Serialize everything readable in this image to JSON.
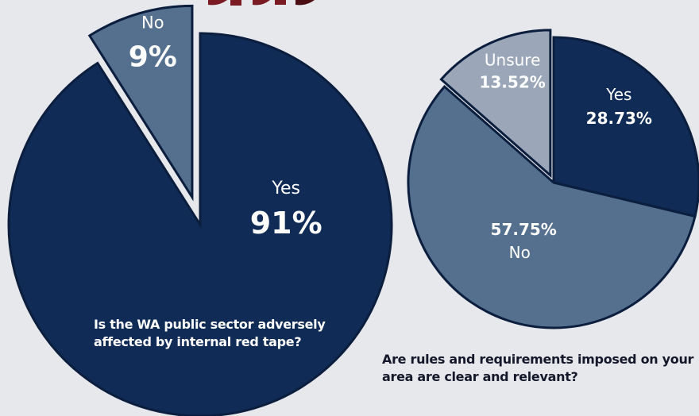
{
  "page": {
    "banner_colors": [
      "#7a1a22",
      "#4a0d12"
    ]
  },
  "colors": {
    "dark_navy": "#0f2b56",
    "mid_slate": "#55708f",
    "light_slate": "#9ba7b8",
    "outline": "#0c1e3e",
    "background": "#e7e8ec"
  },
  "chart_data": [
    {
      "type": "pie",
      "question": "Is the WA public sector adversely affected by internal red tape?",
      "slices": [
        {
          "label": "Yes",
          "value_text": "91%",
          "value": 91,
          "color": "#0f2b56"
        },
        {
          "label": "No",
          "value_text": "9%",
          "value": 9,
          "color": "#55708f",
          "exploded": true
        }
      ]
    },
    {
      "type": "pie",
      "question": "Are rules and requirements imposed on your area are clear and relevant?",
      "slices": [
        {
          "label": "Yes",
          "value_text": "28.73%",
          "value": 28.73,
          "color": "#0f2b56"
        },
        {
          "label": "No",
          "value_text": "57.75%",
          "value": 57.75,
          "color": "#55708f"
        },
        {
          "label": "Unsure",
          "value_text": "13.52%",
          "value": 13.52,
          "color": "#9ba7b8"
        }
      ]
    }
  ]
}
